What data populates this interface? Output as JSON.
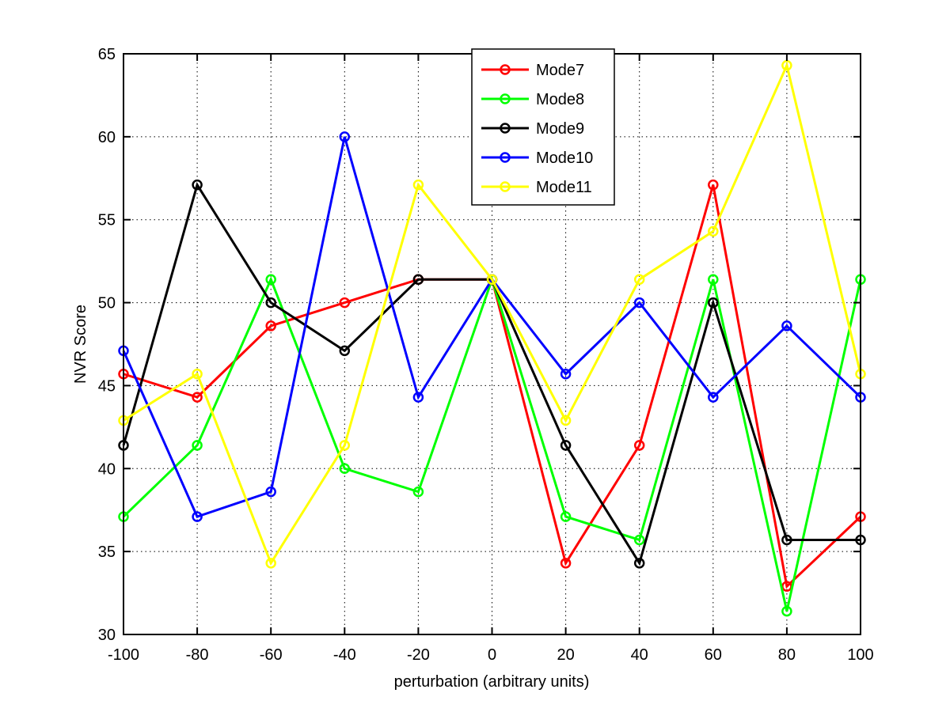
{
  "chart_data": {
    "type": "line",
    "title": "",
    "xlabel": "perturbation (arbitrary units)",
    "ylabel": "NVR Score",
    "xlim": [
      -100,
      100
    ],
    "ylim": [
      30,
      65
    ],
    "xticks": [
      -100,
      -80,
      -60,
      -40,
      -20,
      0,
      20,
      40,
      60,
      80,
      100
    ],
    "yticks": [
      30,
      35,
      40,
      45,
      50,
      55,
      60,
      65
    ],
    "grid": true,
    "legend_position": "top-center",
    "x": [
      -100,
      -80,
      -60,
      -40,
      -20,
      0,
      20,
      40,
      60,
      80,
      100
    ],
    "series": [
      {
        "name": "Mode7",
        "color": "#ff0000",
        "values": [
          45.7,
          44.3,
          48.6,
          50.0,
          51.4,
          51.4,
          34.3,
          41.4,
          57.1,
          32.9,
          37.1
        ]
      },
      {
        "name": "Mode8",
        "color": "#00ff00",
        "values": [
          37.1,
          41.4,
          51.4,
          40.0,
          38.6,
          51.4,
          37.1,
          35.7,
          51.4,
          31.4,
          51.4
        ]
      },
      {
        "name": "Mode9",
        "color": "#000000",
        "values": [
          41.4,
          57.1,
          50.0,
          47.1,
          51.4,
          51.4,
          41.4,
          34.3,
          50.0,
          35.7,
          35.7
        ]
      },
      {
        "name": "Mode10",
        "color": "#0000ff",
        "values": [
          47.1,
          37.1,
          38.6,
          60.0,
          44.3,
          51.4,
          45.7,
          50.0,
          44.3,
          48.6,
          44.3
        ]
      },
      {
        "name": "Mode11",
        "color": "#ffff00",
        "values": [
          42.9,
          45.7,
          34.3,
          41.4,
          57.1,
          51.4,
          42.9,
          51.4,
          54.3,
          64.3,
          45.7
        ]
      }
    ]
  }
}
